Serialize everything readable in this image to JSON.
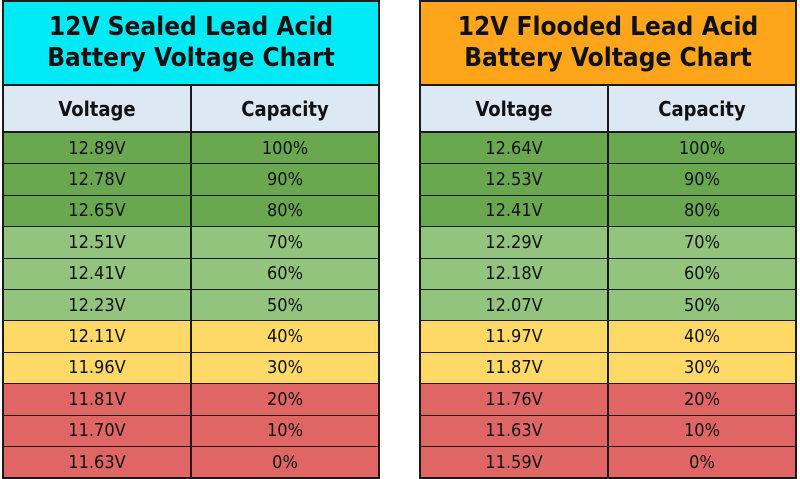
{
  "colors": {
    "sealed_header": "#00eaf5",
    "flooded_header": "#ffa51c",
    "column_header": "#dde8f5",
    "dark_green": "#6aa84f",
    "light_green": "#93c47d",
    "yellow": "#ffd966",
    "red": "#e06666"
  },
  "chart_data": [
    {
      "type": "table",
      "title_line1": "12V Sealed Lead Acid",
      "title_line2": "Battery Voltage Chart",
      "columns": [
        "Voltage",
        "Capacity"
      ],
      "rows": [
        {
          "voltage": "12.89V",
          "capacity": "100%",
          "color": "#6aa84f"
        },
        {
          "voltage": "12.78V",
          "capacity": "90%",
          "color": "#6aa84f"
        },
        {
          "voltage": "12.65V",
          "capacity": "80%",
          "color": "#6aa84f"
        },
        {
          "voltage": "12.51V",
          "capacity": "70%",
          "color": "#93c47d"
        },
        {
          "voltage": "12.41V",
          "capacity": "60%",
          "color": "#93c47d"
        },
        {
          "voltage": "12.23V",
          "capacity": "50%",
          "color": "#93c47d"
        },
        {
          "voltage": "12.11V",
          "capacity": "40%",
          "color": "#ffd966"
        },
        {
          "voltage": "11.96V",
          "capacity": "30%",
          "color": "#ffd966"
        },
        {
          "voltage": "11.81V",
          "capacity": "20%",
          "color": "#e06666"
        },
        {
          "voltage": "11.70V",
          "capacity": "10%",
          "color": "#e06666"
        },
        {
          "voltage": "11.63V",
          "capacity": "0%",
          "color": "#e06666"
        }
      ]
    },
    {
      "type": "table",
      "title_line1": "12V Flooded Lead Acid",
      "title_line2": "Battery Voltage Chart",
      "columns": [
        "Voltage",
        "Capacity"
      ],
      "rows": [
        {
          "voltage": "12.64V",
          "capacity": "100%",
          "color": "#6aa84f"
        },
        {
          "voltage": "12.53V",
          "capacity": "90%",
          "color": "#6aa84f"
        },
        {
          "voltage": "12.41V",
          "capacity": "80%",
          "color": "#6aa84f"
        },
        {
          "voltage": "12.29V",
          "capacity": "70%",
          "color": "#93c47d"
        },
        {
          "voltage": "12.18V",
          "capacity": "60%",
          "color": "#93c47d"
        },
        {
          "voltage": "12.07V",
          "capacity": "50%",
          "color": "#93c47d"
        },
        {
          "voltage": "11.97V",
          "capacity": "40%",
          "color": "#ffd966"
        },
        {
          "voltage": "11.87V",
          "capacity": "30%",
          "color": "#ffd966"
        },
        {
          "voltage": "11.76V",
          "capacity": "20%",
          "color": "#e06666"
        },
        {
          "voltage": "11.63V",
          "capacity": "10%",
          "color": "#e06666"
        },
        {
          "voltage": "11.59V",
          "capacity": "0%",
          "color": "#e06666"
        }
      ]
    }
  ]
}
